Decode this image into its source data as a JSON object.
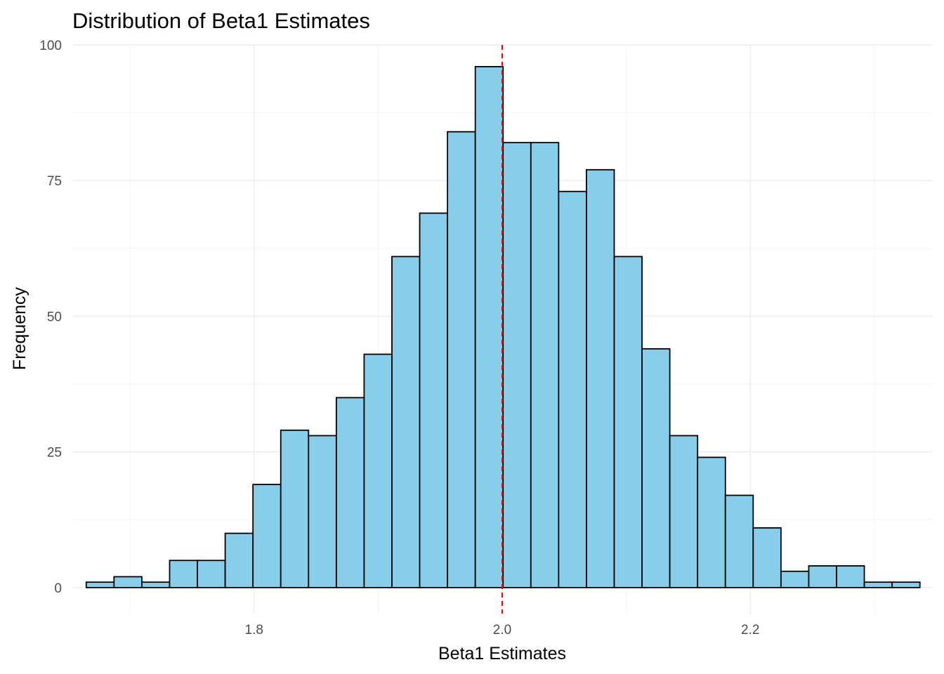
{
  "chart_data": {
    "type": "bar",
    "subtype": "histogram",
    "title": "Distribution of Beta1 Estimates",
    "xlabel": "Beta1 Estimates",
    "ylabel": "Frequency",
    "xlim": [
      1.6535,
      2.3465
    ],
    "ylim": [
      -4.8,
      100
    ],
    "x_ticks": [
      1.8,
      2.0,
      2.2
    ],
    "x_tick_labels": [
      "1.8",
      "2.0",
      "2.2"
    ],
    "y_ticks": [
      0,
      25,
      50,
      75,
      100
    ],
    "y_tick_labels": [
      "0",
      "25",
      "50",
      "75",
      "100"
    ],
    "bin_width": 0.0224,
    "bin_centers": [
      1.6759,
      1.6983,
      1.7207,
      1.7431,
      1.7655,
      1.7879,
      1.8103,
      1.8327,
      1.8551,
      1.8775,
      1.8999,
      1.9223,
      1.9447,
      1.9671,
      1.9895,
      2.0119,
      2.0343,
      2.0567,
      2.0791,
      2.1015,
      2.1239,
      2.1463,
      2.1687,
      2.1911,
      2.2135,
      2.2359,
      2.2583,
      2.2807,
      2.3031,
      2.3255
    ],
    "values": [
      1,
      2,
      1,
      5,
      5,
      10,
      19,
      29,
      28,
      35,
      43,
      61,
      69,
      84,
      96,
      82,
      82,
      73,
      77,
      61,
      44,
      28,
      24,
      17,
      11,
      3,
      4,
      4,
      1,
      1
    ],
    "reference_line": {
      "x": 2.0,
      "orientation": "vertical",
      "style": "dashed"
    },
    "grid": true,
    "legend": "none",
    "colors": {
      "bar_fill": "#87ceeb",
      "bar_border": "#000000",
      "reference_line": "#ff0000"
    }
  }
}
